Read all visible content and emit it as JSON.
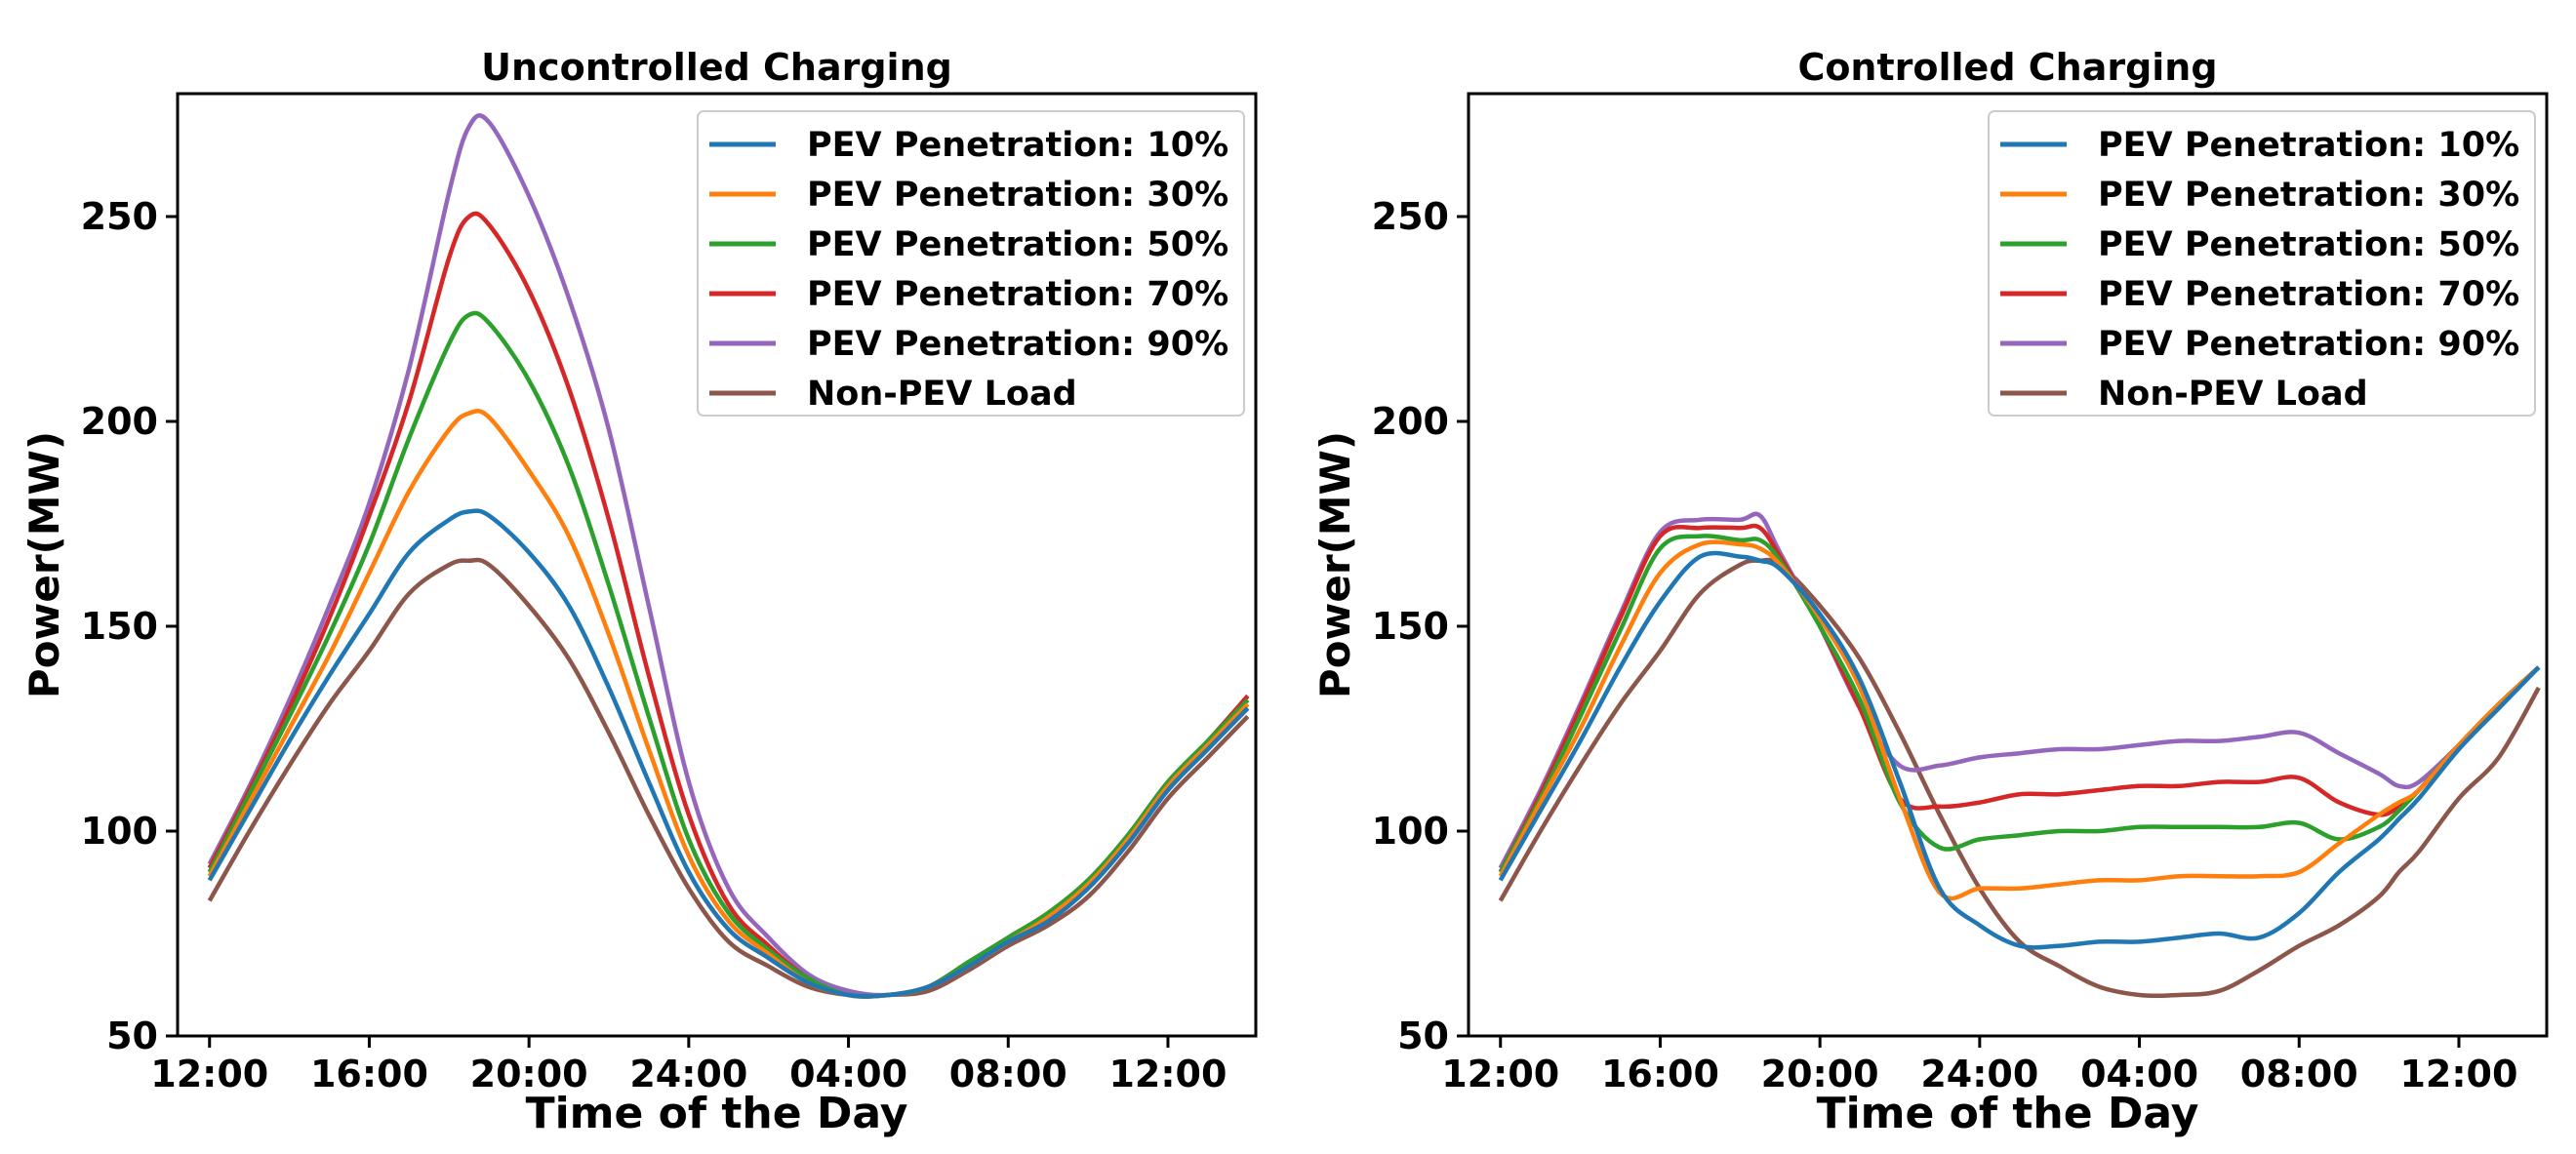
{
  "chart_data": [
    {
      "type": "line",
      "title": "Uncontrolled Charging",
      "xlabel": "Time of the Day",
      "ylabel": "Power(MW)",
      "ylim": [
        50,
        280
      ],
      "x_tick_labels": [
        "12:00",
        "16:00",
        "20:00",
        "24:00",
        "04:00",
        "08:00",
        "12:00"
      ],
      "x_hours": [
        12,
        13,
        14,
        15,
        16,
        17,
        18,
        18.5,
        19,
        20,
        21,
        22,
        23,
        24,
        25,
        26,
        27,
        28,
        29,
        30,
        31,
        32,
        33,
        34,
        35,
        36,
        37,
        38
      ],
      "y_ticks": [
        50,
        100,
        150,
        200,
        250
      ],
      "grid": false,
      "legend_position": "top-right",
      "series": [
        {
          "name": "PEV Penetration: 10%",
          "color": "#1f77b4",
          "values": [
            88,
            105,
            122,
            138,
            153,
            168,
            176,
            178,
            177,
            168,
            155,
            135,
            112,
            90,
            76,
            69,
            63,
            60,
            60,
            62,
            67,
            73,
            78,
            86,
            97,
            110,
            120,
            130
          ]
        },
        {
          "name": "PEV Penetration: 30%",
          "color": "#ff7f0e",
          "values": [
            89,
            107,
            125,
            143,
            163,
            183,
            198,
            202,
            201,
            188,
            172,
            148,
            120,
            94,
            78,
            70,
            63,
            60,
            60,
            62,
            67,
            73,
            79,
            87,
            98,
            111,
            121,
            131
          ]
        },
        {
          "name": "PEV Penetration: 50%",
          "color": "#2ca02c",
          "values": [
            90,
            109,
            128,
            148,
            170,
            196,
            219,
            226,
            224,
            210,
            189,
            160,
            128,
            98,
            80,
            71,
            64,
            60,
            60,
            62,
            68,
            74,
            80,
            88,
            99,
            112,
            122,
            132
          ]
        },
        {
          "name": "PEV Penetration: 70%",
          "color": "#d62728",
          "values": [
            91,
            110,
            130,
            152,
            177,
            205,
            240,
            250,
            248,
            232,
            208,
            176,
            138,
            104,
            82,
            72,
            64,
            60,
            60,
            62,
            68,
            74,
            80,
            88,
            99,
            112,
            122,
            133
          ]
        },
        {
          "name": "PEV Penetration: 90%",
          "color": "#9467bd",
          "values": [
            92,
            111,
            132,
            155,
            180,
            213,
            256,
            272,
            273,
            255,
            230,
            198,
            155,
            112,
            86,
            74,
            65,
            61,
            60,
            62,
            68,
            74,
            80,
            88,
            99,
            112,
            122,
            133
          ]
        },
        {
          "name": "Non-PEV Load",
          "color": "#8c564b",
          "values": [
            83,
            100,
            116,
            131,
            144,
            158,
            165,
            166,
            165,
            155,
            142,
            124,
            104,
            86,
            73,
            67,
            62,
            60,
            60,
            61,
            66,
            72,
            77,
            84,
            95,
            108,
            118,
            128
          ]
        }
      ]
    },
    {
      "type": "line",
      "title": "Controlled Charging",
      "xlabel": "Time of the Day",
      "ylabel": "Power(MW)",
      "ylim": [
        50,
        280
      ],
      "x_tick_labels": [
        "12:00",
        "16:00",
        "20:00",
        "24:00",
        "04:00",
        "08:00",
        "12:00"
      ],
      "x_hours": [
        12,
        13,
        14,
        15,
        16,
        17,
        18,
        18.5,
        19,
        20,
        21,
        22,
        23,
        24,
        25,
        26,
        27,
        28,
        29,
        30,
        31,
        32,
        33,
        34,
        34.5,
        35,
        36,
        37,
        38
      ],
      "y_ticks": [
        50,
        100,
        150,
        200,
        250
      ],
      "grid": false,
      "legend_position": "top-right",
      "series": [
        {
          "name": "PEV Penetration: 10%",
          "color": "#1f77b4",
          "values": [
            88,
            105,
            122,
            140,
            156,
            167,
            167,
            166,
            164,
            153,
            137,
            112,
            86,
            77,
            72,
            72,
            73,
            73,
            74,
            75,
            74,
            80,
            90,
            98,
            103,
            108,
            120,
            130,
            140
          ]
        },
        {
          "name": "PEV Penetration: 30%",
          "color": "#ff7f0e",
          "values": [
            89,
            107,
            125,
            145,
            163,
            170,
            170,
            169,
            165,
            152,
            135,
            108,
            85,
            86,
            86,
            87,
            88,
            88,
            89,
            89,
            89,
            90,
            97,
            104,
            107,
            110,
            121,
            131,
            140
          ]
        },
        {
          "name": "PEV Penetration: 50%",
          "color": "#2ca02c",
          "values": [
            90,
            108,
            128,
            149,
            169,
            172,
            171,
            171,
            166,
            150,
            132,
            107,
            96,
            98,
            99,
            100,
            100,
            101,
            101,
            101,
            101,
            102,
            98,
            101,
            105,
            110,
            121,
            131,
            140
          ]
        },
        {
          "name": "PEV Penetration: 70%",
          "color": "#d62728",
          "values": [
            90,
            109,
            130,
            152,
            172,
            174,
            174,
            174,
            167,
            150,
            130,
            108,
            106,
            107,
            109,
            109,
            110,
            111,
            111,
            112,
            112,
            113,
            107,
            104,
            106,
            110,
            121,
            131,
            140
          ]
        },
        {
          "name": "PEV Penetration: 90%",
          "color": "#9467bd",
          "values": [
            91,
            110,
            131,
            153,
            173,
            176,
            176,
            177,
            168,
            150,
            130,
            116,
            116,
            118,
            119,
            120,
            120,
            121,
            122,
            122,
            123,
            124,
            119,
            114,
            111,
            112,
            121,
            131,
            140
          ]
        },
        {
          "name": "Non-PEV Load",
          "color": "#8c564b",
          "values": [
            83,
            100,
            116,
            131,
            144,
            158,
            165,
            166,
            165,
            155,
            142,
            124,
            104,
            86,
            73,
            67,
            62,
            60,
            60,
            61,
            66,
            72,
            77,
            84,
            90,
            95,
            108,
            118,
            135
          ]
        }
      ]
    }
  ]
}
